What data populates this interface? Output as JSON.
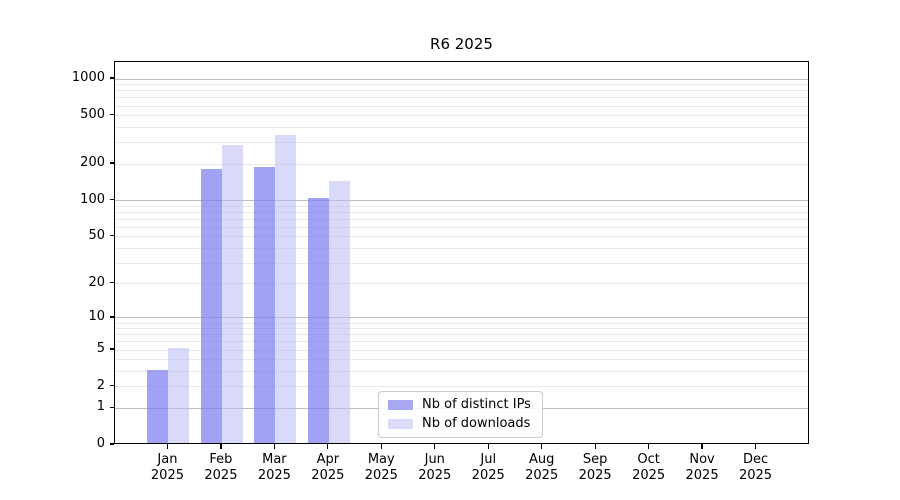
{
  "title": "R6 2025",
  "chart_data": {
    "type": "bar",
    "title": "R6 2025",
    "categories": [
      "Jan 2025",
      "Feb 2025",
      "Mar 2025",
      "Apr 2025",
      "May 2025",
      "Jun 2025",
      "Jul 2025",
      "Aug 2025",
      "Sep 2025",
      "Oct 2025",
      "Nov 2025",
      "Dec 2025"
    ],
    "series": [
      {
        "name": "Nb of distinct IPs",
        "values": [
          3,
          175,
          182,
          102,
          0,
          0,
          0,
          0,
          0,
          0,
          0,
          0
        ],
        "bar_fill": "rgba(126,126,240,0.72)",
        "legend_swatch": "#a7a7f2"
      },
      {
        "name": "Nb of downloads",
        "values": [
          5,
          277,
          334,
          139,
          0,
          0,
          0,
          0,
          0,
          0,
          0,
          0
        ],
        "bar_fill": "rgba(186,186,246,0.55)",
        "legend_swatch": "#dbdbfa"
      }
    ],
    "yticks": [
      0,
      1,
      2,
      5,
      10,
      20,
      50,
      100,
      200,
      500,
      1000
    ],
    "scale": "log1p",
    "ylim": [
      0,
      1380
    ],
    "grid": "both",
    "legend_position": "lower center",
    "colors": {
      "axis": "#000000",
      "major_grid": "#bdbdbd",
      "minor_grid": "#e9e9e9",
      "text": "#000000"
    }
  }
}
